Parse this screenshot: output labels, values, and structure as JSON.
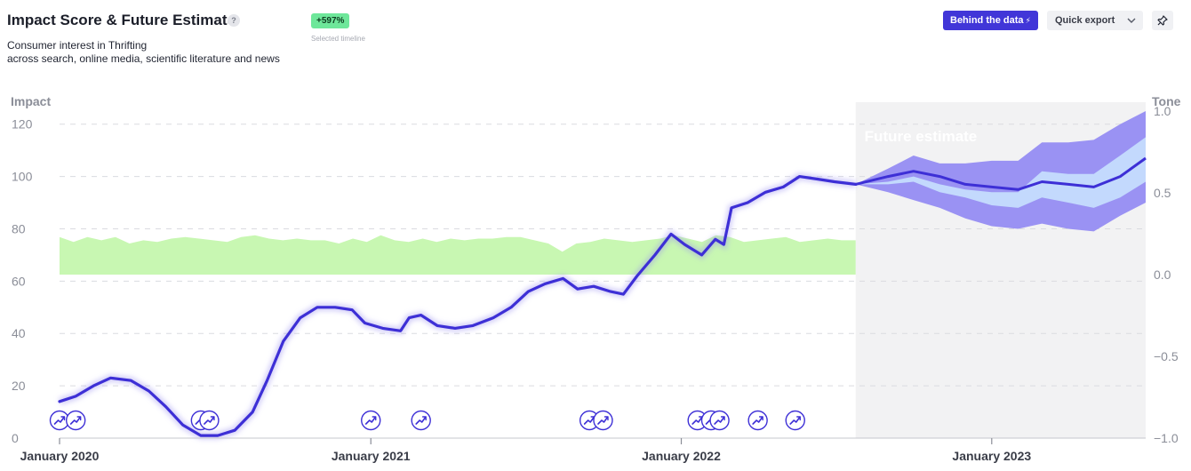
{
  "header": {
    "title": "Impact Score & Future Estimate",
    "help_glyph": "?",
    "subtitle_line1": "Consumer interest in Thrifting",
    "subtitle_line2": "across search, online media, scientific literature and news",
    "change_badge": "+597%",
    "change_caption": "Selected timeline"
  },
  "toolbar": {
    "behind_data_label": "Behind the data",
    "behind_data_icon": "lightning-icon",
    "quick_export_label": "Quick export",
    "quick_export_icon": "chevron-down-icon",
    "pin_icon": "pin-icon"
  },
  "colors": {
    "impact_line": "#3d2fd6",
    "tone_area": "#c8f7b2",
    "forecast_outer": "#9a92f3",
    "forecast_inner": "#c3d9fd",
    "future_region": "#f2f2f3",
    "accent_button": "#4136d8",
    "badge": "#6ee79a"
  },
  "chart_data": {
    "type": "line",
    "ylabel_left": "Impact",
    "ylabel_right": "Tone",
    "future_label": "Future estimate",
    "left_ticks": [
      0,
      20,
      40,
      60,
      80,
      100,
      120
    ],
    "left_tick_labels": [
      "0",
      "20",
      "40",
      "60",
      "80",
      "100",
      "120"
    ],
    "right_ticks": [
      -1.0,
      -0.5,
      0.0,
      0.5,
      1.0
    ],
    "right_tick_labels": [
      "−1.0",
      "−0.5",
      "0.0",
      "0.5",
      "1.0"
    ],
    "ylim_left": [
      0,
      125
    ],
    "ylim_right": [
      -1.0,
      1.0
    ],
    "xlim": [
      "2020-01-01",
      "2023-07-01"
    ],
    "x_ticks": [
      "2020-01-01",
      "2021-01-01",
      "2022-01-01",
      "2023-01-01"
    ],
    "x_tick_labels": [
      "January 2020",
      "January 2021",
      "January 2022",
      "January 2023"
    ],
    "future_start": "2022-07-25",
    "grid": "horizontal dashed",
    "series": [
      {
        "kind": "impact",
        "points": [
          [
            "2020-01-01",
            14
          ],
          [
            "2020-01-20",
            16
          ],
          [
            "2020-02-10",
            20
          ],
          [
            "2020-03-01",
            23
          ],
          [
            "2020-03-25",
            22
          ],
          [
            "2020-04-15",
            18
          ],
          [
            "2020-05-05",
            12
          ],
          [
            "2020-05-25",
            5
          ],
          [
            "2020-06-15",
            1
          ],
          [
            "2020-07-05",
            1
          ],
          [
            "2020-07-25",
            3
          ],
          [
            "2020-08-15",
            10
          ],
          [
            "2020-09-01",
            22
          ],
          [
            "2020-09-20",
            37
          ],
          [
            "2020-10-10",
            46
          ],
          [
            "2020-10-30",
            50
          ],
          [
            "2020-11-20",
            50
          ],
          [
            "2020-12-10",
            49
          ],
          [
            "2020-12-25",
            44
          ],
          [
            "2021-01-15",
            42
          ],
          [
            "2021-02-05",
            41
          ],
          [
            "2021-02-15",
            46
          ],
          [
            "2021-03-01",
            47
          ],
          [
            "2021-03-20",
            43
          ],
          [
            "2021-04-10",
            42
          ],
          [
            "2021-05-01",
            43
          ],
          [
            "2021-05-25",
            46
          ],
          [
            "2021-06-15",
            50
          ],
          [
            "2021-07-05",
            56
          ],
          [
            "2021-07-25",
            59
          ],
          [
            "2021-08-15",
            61
          ],
          [
            "2021-09-01",
            57
          ],
          [
            "2021-09-20",
            58
          ],
          [
            "2021-10-10",
            56
          ],
          [
            "2021-10-25",
            55
          ],
          [
            "2021-11-10",
            62
          ],
          [
            "2021-12-01",
            70
          ],
          [
            "2021-12-20",
            78
          ],
          [
            "2022-01-05",
            74
          ],
          [
            "2022-01-25",
            70
          ],
          [
            "2022-02-10",
            76
          ],
          [
            "2022-02-20",
            74
          ],
          [
            "2022-03-01",
            88
          ],
          [
            "2022-03-20",
            90
          ],
          [
            "2022-04-10",
            94
          ],
          [
            "2022-05-01",
            96
          ],
          [
            "2022-05-20",
            100
          ],
          [
            "2022-06-10",
            99
          ],
          [
            "2022-06-30",
            98
          ],
          [
            "2022-07-25",
            97
          ]
        ]
      },
      {
        "kind": "tone",
        "baseline": 0.0,
        "range": [
          "2020-01-01",
          "2022-07-25"
        ],
        "values": [
          0.23,
          0.2,
          0.23,
          0.21,
          0.23,
          0.19,
          0.21,
          0.2,
          0.22,
          0.23,
          0.22,
          0.21,
          0.2,
          0.23,
          0.24,
          0.22,
          0.21,
          0.22,
          0.21,
          0.21,
          0.19,
          0.22,
          0.2,
          0.24,
          0.21,
          0.2,
          0.22,
          0.2,
          0.22,
          0.21,
          0.22,
          0.22,
          0.23,
          0.23,
          0.21,
          0.19,
          0.14,
          0.19,
          0.2,
          0.22,
          0.21,
          0.2,
          0.21,
          0.22,
          0.24,
          0.22,
          0.2,
          0.24,
          0.23,
          0.2,
          0.21,
          0.22,
          0.23,
          0.2,
          0.21,
          0.22,
          0.21,
          0.21
        ]
      },
      {
        "kind": "forecast",
        "points": [
          [
            "2022-07-25",
            97,
            97,
            97,
            97,
            97
          ],
          [
            "2022-09-01",
            100,
            103,
            98,
            97,
            94
          ],
          [
            "2022-10-01",
            102,
            108,
            100,
            98,
            91
          ],
          [
            "2022-11-01",
            100,
            105,
            97,
            94,
            88
          ],
          [
            "2022-12-01",
            97,
            105,
            95,
            92,
            84
          ],
          [
            "2023-01-01",
            96,
            106,
            94,
            89,
            81
          ],
          [
            "2023-02-01",
            95,
            106,
            94,
            88,
            80
          ],
          [
            "2023-03-01",
            98,
            113,
            102,
            92,
            82
          ],
          [
            "2023-04-01",
            97,
            113,
            101,
            90,
            80
          ],
          [
            "2023-05-01",
            96,
            114,
            101,
            88,
            79
          ],
          [
            "2023-06-01",
            100,
            120,
            108,
            92,
            85
          ],
          [
            "2023-07-01",
            107,
            125,
            115,
            98,
            90
          ]
        ]
      }
    ],
    "event_markers": [
      "2020-01-01",
      "2020-01-20",
      "2020-06-15",
      "2020-06-25",
      "2021-01-01",
      "2021-03-01",
      "2021-09-15",
      "2021-10-01",
      "2022-01-20",
      "2022-02-05",
      "2022-02-15",
      "2022-04-01",
      "2022-05-15"
    ],
    "event_marker_icon": "trend-arrow-icon"
  }
}
